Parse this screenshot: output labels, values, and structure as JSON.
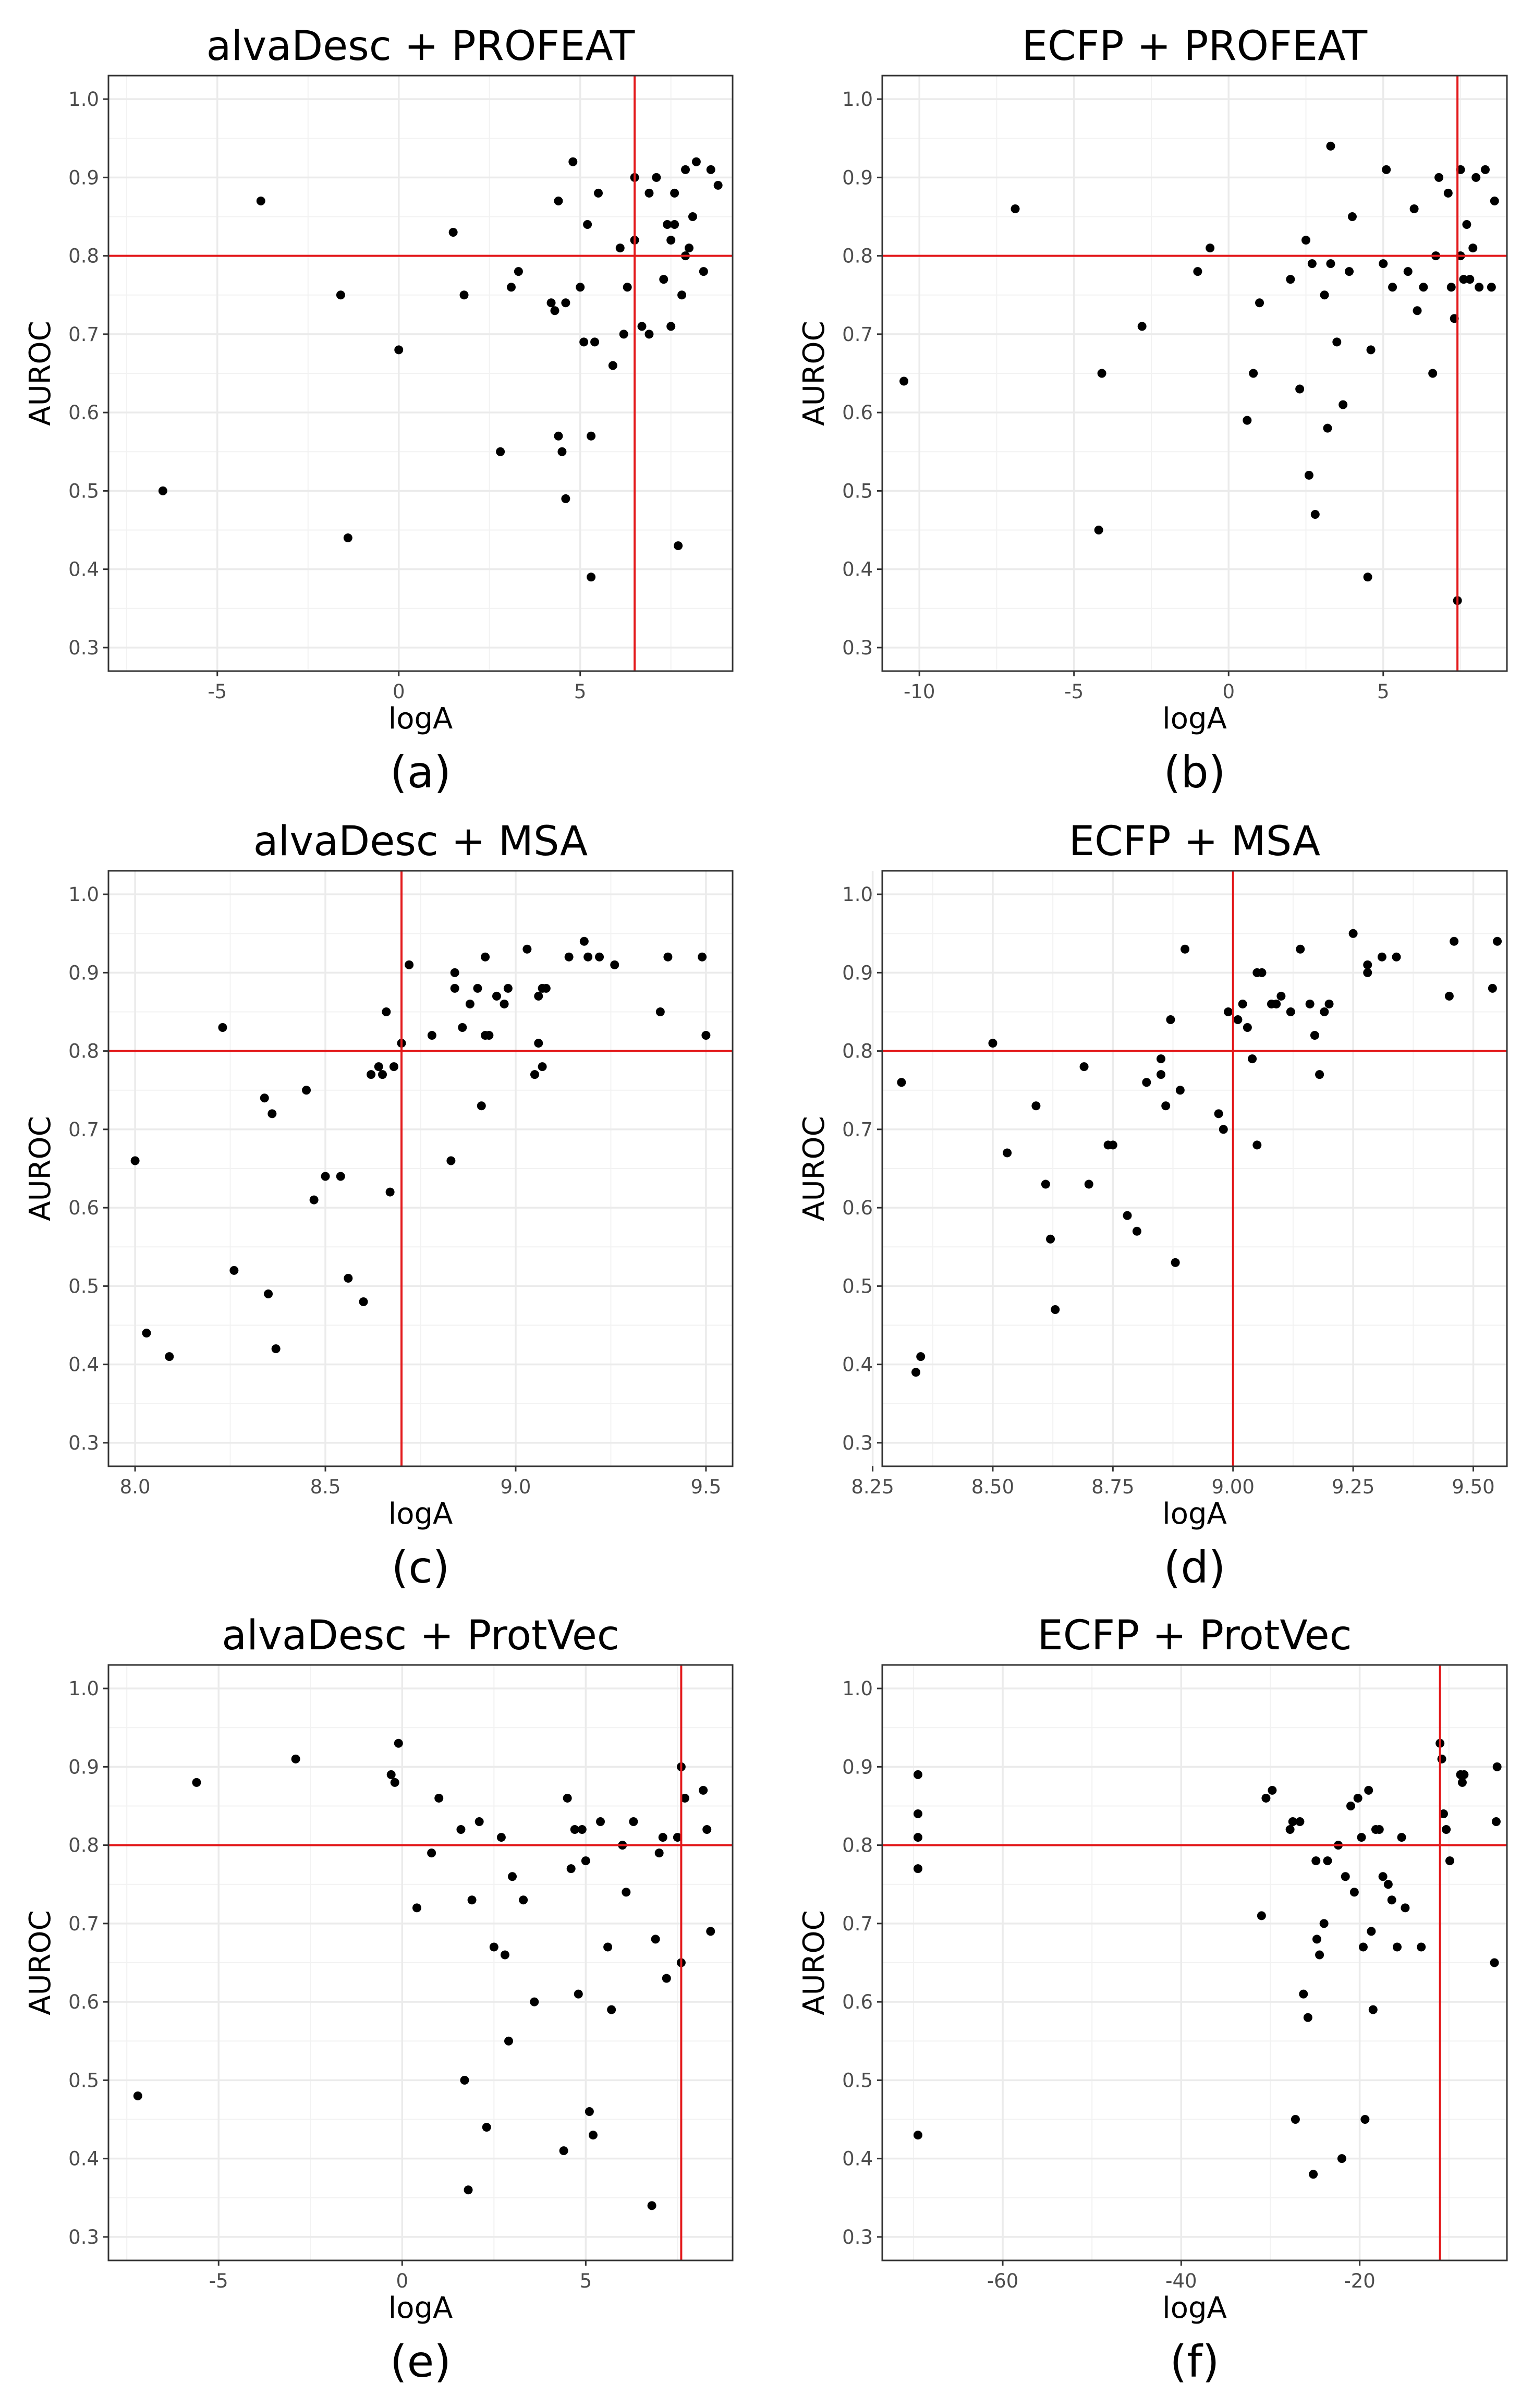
{
  "chart_data": [
    {
      "type": "scatter",
      "title": "alvaDesc + PROFEAT",
      "caption": "(a)",
      "xlabel": "logA",
      "ylabel": "AUROC",
      "xlim": [
        -8,
        9.2
      ],
      "ylim": [
        0.27,
        1.03
      ],
      "xticks": [
        -5,
        0,
        5
      ],
      "xtick_labels": [
        "-5",
        "0",
        "5"
      ],
      "yticks": [
        0.3,
        0.4,
        0.5,
        0.6,
        0.7,
        0.8,
        0.9,
        1.0
      ],
      "ytick_labels": [
        "0.3",
        "0.4",
        "0.5",
        "0.6",
        "0.7",
        "0.8",
        "0.9",
        "1.0"
      ],
      "vline": 6.5,
      "hline": 0.8,
      "line_color": "#e31a1c",
      "x": [
        -6.5,
        -3.8,
        -1.6,
        -1.4,
        0.0,
        1.5,
        1.8,
        2.8,
        3.1,
        3.3,
        4.2,
        4.3,
        4.4,
        4.4,
        4.5,
        4.6,
        4.6,
        4.8,
        5.0,
        5.1,
        5.2,
        5.3,
        5.3,
        5.4,
        5.5,
        5.9,
        6.1,
        6.2,
        6.3,
        6.5,
        6.5,
        6.7,
        6.9,
        6.9,
        7.1,
        7.3,
        7.4,
        7.5,
        7.5,
        7.6,
        7.6,
        7.7,
        7.8,
        7.9,
        7.9,
        8.0,
        8.1,
        8.2,
        8.4,
        8.6,
        8.8
      ],
      "y": [
        0.5,
        0.87,
        0.75,
        0.44,
        0.68,
        0.83,
        0.75,
        0.55,
        0.76,
        0.78,
        0.74,
        0.73,
        0.87,
        0.57,
        0.55,
        0.74,
        0.49,
        0.92,
        0.76,
        0.69,
        0.84,
        0.57,
        0.39,
        0.69,
        0.88,
        0.66,
        0.81,
        0.7,
        0.76,
        0.82,
        0.9,
        0.71,
        0.88,
        0.7,
        0.9,
        0.77,
        0.84,
        0.82,
        0.71,
        0.84,
        0.88,
        0.43,
        0.75,
        0.8,
        0.91,
        0.81,
        0.85,
        0.92,
        0.78,
        0.91,
        0.89
      ]
    },
    {
      "type": "scatter",
      "title": "ECFP + PROFEAT",
      "caption": "(b)",
      "xlabel": "logA",
      "ylabel": "AUROC",
      "xlim": [
        -11.2,
        9.0
      ],
      "ylim": [
        0.27,
        1.03
      ],
      "xticks": [
        -10,
        -5,
        0,
        5
      ],
      "xtick_labels": [
        "-10",
        "-5",
        "0",
        "5"
      ],
      "yticks": [
        0.3,
        0.4,
        0.5,
        0.6,
        0.7,
        0.8,
        0.9,
        1.0
      ],
      "ytick_labels": [
        "0.3",
        "0.4",
        "0.5",
        "0.6",
        "0.7",
        "0.8",
        "0.9",
        "1.0"
      ],
      "vline": 7.4,
      "hline": 0.8,
      "line_color": "#e31a1c",
      "x": [
        -10.5,
        -6.9,
        -4.2,
        -4.1,
        -2.8,
        -1.0,
        -0.6,
        0.6,
        0.8,
        1.0,
        2.0,
        2.3,
        2.5,
        2.6,
        2.7,
        2.8,
        3.1,
        3.2,
        3.3,
        3.3,
        3.5,
        3.7,
        3.9,
        4.0,
        4.5,
        4.6,
        5.0,
        5.1,
        5.3,
        5.8,
        6.0,
        6.1,
        6.3,
        6.6,
        6.7,
        6.8,
        7.1,
        7.2,
        7.3,
        7.4,
        7.5,
        7.5,
        7.6,
        7.7,
        7.8,
        7.9,
        8.0,
        8.1,
        8.3,
        8.5,
        8.6
      ],
      "y": [
        0.64,
        0.86,
        0.45,
        0.65,
        0.71,
        0.78,
        0.81,
        0.59,
        0.65,
        0.74,
        0.77,
        0.63,
        0.82,
        0.52,
        0.79,
        0.47,
        0.75,
        0.58,
        0.79,
        0.94,
        0.69,
        0.61,
        0.78,
        0.85,
        0.39,
        0.68,
        0.79,
        0.91,
        0.76,
        0.78,
        0.86,
        0.73,
        0.76,
        0.65,
        0.8,
        0.9,
        0.88,
        0.76,
        0.72,
        0.36,
        0.8,
        0.91,
        0.77,
        0.84,
        0.77,
        0.81,
        0.9,
        0.76,
        0.91,
        0.76,
        0.87
      ]
    },
    {
      "type": "scatter",
      "title": "alvaDesc + MSA",
      "caption": "(c)",
      "xlabel": "logA",
      "ylabel": "AUROC",
      "xlim": [
        7.93,
        9.57
      ],
      "ylim": [
        0.27,
        1.03
      ],
      "xticks": [
        8.0,
        8.5,
        9.0,
        9.5
      ],
      "xtick_labels": [
        "8.0",
        "8.5",
        "9.0",
        "9.5"
      ],
      "yticks": [
        0.3,
        0.4,
        0.5,
        0.6,
        0.7,
        0.8,
        0.9,
        1.0
      ],
      "ytick_labels": [
        "0.3",
        "0.4",
        "0.5",
        "0.6",
        "0.7",
        "0.8",
        "0.9",
        "1.0"
      ],
      "vline": 8.7,
      "hline": 0.8,
      "line_color": "#e31a1c",
      "x": [
        8.0,
        8.03,
        8.09,
        8.23,
        8.26,
        8.34,
        8.35,
        8.36,
        8.37,
        8.45,
        8.47,
        8.5,
        8.54,
        8.56,
        8.6,
        8.62,
        8.64,
        8.65,
        8.66,
        8.67,
        8.68,
        8.7,
        8.72,
        8.78,
        8.83,
        8.84,
        8.84,
        8.86,
        8.88,
        8.9,
        8.91,
        8.92,
        8.92,
        8.93,
        8.95,
        8.97,
        8.98,
        9.03,
        9.05,
        9.06,
        9.06,
        9.07,
        9.07,
        9.08,
        9.14,
        9.18,
        9.19,
        9.22,
        9.26,
        9.38,
        9.4,
        9.49,
        9.5
      ],
      "y": [
        0.66,
        0.44,
        0.41,
        0.83,
        0.52,
        0.74,
        0.49,
        0.72,
        0.42,
        0.75,
        0.61,
        0.64,
        0.64,
        0.51,
        0.48,
        0.77,
        0.78,
        0.77,
        0.85,
        0.62,
        0.78,
        0.81,
        0.91,
        0.82,
        0.66,
        0.88,
        0.9,
        0.83,
        0.86,
        0.88,
        0.73,
        0.92,
        0.82,
        0.82,
        0.87,
        0.86,
        0.88,
        0.93,
        0.77,
        0.87,
        0.81,
        0.78,
        0.88,
        0.88,
        0.92,
        0.94,
        0.92,
        0.92,
        0.91,
        0.85,
        0.92,
        0.92,
        0.82
      ]
    },
    {
      "type": "scatter",
      "title": "ECFP + MSA",
      "caption": "(d)",
      "xlabel": "logA",
      "ylabel": "AUROC",
      "xlim": [
        8.27,
        9.57
      ],
      "ylim": [
        0.27,
        1.03
      ],
      "xticks": [
        8.25,
        8.5,
        8.75,
        9.0,
        9.25,
        9.5
      ],
      "xtick_labels": [
        "8.25",
        "8.50",
        "8.75",
        "9.00",
        "9.25",
        "9.50"
      ],
      "yticks": [
        0.3,
        0.4,
        0.5,
        0.6,
        0.7,
        0.8,
        0.9,
        1.0
      ],
      "ytick_labels": [
        "0.3",
        "0.4",
        "0.5",
        "0.6",
        "0.7",
        "0.8",
        "0.9",
        "1.0"
      ],
      "vline": 9.0,
      "hline": 0.8,
      "line_color": "#e31a1c",
      "x": [
        8.31,
        8.34,
        8.35,
        8.5,
        8.53,
        8.59,
        8.61,
        8.62,
        8.63,
        8.69,
        8.7,
        8.74,
        8.75,
        8.78,
        8.8,
        8.82,
        8.85,
        8.85,
        8.86,
        8.87,
        8.88,
        8.89,
        8.9,
        8.97,
        8.98,
        8.99,
        9.01,
        9.02,
        9.03,
        9.04,
        9.05,
        9.05,
        9.06,
        9.08,
        9.09,
        9.1,
        9.12,
        9.14,
        9.16,
        9.17,
        9.18,
        9.19,
        9.2,
        9.25,
        9.28,
        9.28,
        9.31,
        9.34,
        9.45,
        9.46,
        9.54,
        9.55
      ],
      "y": [
        0.76,
        0.39,
        0.41,
        0.81,
        0.67,
        0.73,
        0.63,
        0.56,
        0.47,
        0.78,
        0.63,
        0.68,
        0.68,
        0.59,
        0.57,
        0.76,
        0.79,
        0.77,
        0.73,
        0.84,
        0.53,
        0.75,
        0.93,
        0.72,
        0.7,
        0.85,
        0.84,
        0.86,
        0.83,
        0.79,
        0.68,
        0.9,
        0.9,
        0.86,
        0.86,
        0.87,
        0.85,
        0.93,
        0.86,
        0.82,
        0.77,
        0.85,
        0.86,
        0.95,
        0.91,
        0.9,
        0.92,
        0.92,
        0.87,
        0.94,
        0.88,
        0.94
      ]
    },
    {
      "type": "scatter",
      "title": "alvaDesc + ProtVec",
      "caption": "(e)",
      "xlabel": "logA",
      "ylabel": "AUROC",
      "xlim": [
        -8.0,
        9.0
      ],
      "ylim": [
        0.27,
        1.03
      ],
      "xticks": [
        -5,
        0,
        5
      ],
      "xtick_labels": [
        "-5",
        "0",
        "5"
      ],
      "yticks": [
        0.3,
        0.4,
        0.5,
        0.6,
        0.7,
        0.8,
        0.9,
        1.0
      ],
      "ytick_labels": [
        "0.3",
        "0.4",
        "0.5",
        "0.6",
        "0.7",
        "0.8",
        "0.9",
        "1.0"
      ],
      "vline": 7.6,
      "hline": 0.8,
      "line_color": "#e31a1c",
      "x": [
        -7.2,
        -5.6,
        -2.9,
        -0.3,
        -0.2,
        -0.1,
        0.4,
        0.8,
        1.0,
        1.6,
        1.7,
        1.8,
        1.9,
        2.1,
        2.3,
        2.5,
        2.7,
        2.8,
        2.9,
        3.0,
        3.3,
        3.6,
        4.4,
        4.5,
        4.6,
        4.7,
        4.8,
        4.9,
        5.0,
        5.1,
        5.2,
        5.4,
        5.6,
        5.7,
        6.0,
        6.1,
        6.3,
        6.8,
        6.9,
        7.0,
        7.1,
        7.2,
        7.5,
        7.6,
        7.6,
        7.7,
        8.2,
        8.3,
        8.4
      ],
      "y": [
        0.48,
        0.88,
        0.91,
        0.89,
        0.88,
        0.93,
        0.72,
        0.79,
        0.86,
        0.82,
        0.5,
        0.36,
        0.73,
        0.83,
        0.44,
        0.67,
        0.81,
        0.66,
        0.55,
        0.76,
        0.73,
        0.6,
        0.41,
        0.86,
        0.77,
        0.82,
        0.61,
        0.82,
        0.78,
        0.46,
        0.43,
        0.83,
        0.67,
        0.59,
        0.8,
        0.74,
        0.83,
        0.34,
        0.68,
        0.79,
        0.81,
        0.63,
        0.81,
        0.65,
        0.9,
        0.86,
        0.87,
        0.82,
        0.69
      ]
    },
    {
      "type": "scatter",
      "title": "ECFP + ProtVec",
      "caption": "(f)",
      "xlabel": "logA",
      "ylabel": "AUROC",
      "xlim": [
        -73.5,
        -3.5
      ],
      "ylim": [
        0.27,
        1.03
      ],
      "xticks": [
        -60,
        -40,
        -20
      ],
      "xtick_labels": [
        "-60",
        "-40",
        "-20"
      ],
      "yticks": [
        0.3,
        0.4,
        0.5,
        0.6,
        0.7,
        0.8,
        0.9,
        1.0
      ],
      "ytick_labels": [
        "0.3",
        "0.4",
        "0.5",
        "0.6",
        "0.7",
        "0.8",
        "0.9",
        "1.0"
      ],
      "vline": -11,
      "hline": 0.8,
      "line_color": "#e31a1c",
      "x": [
        -69.5,
        -69.5,
        -69.5,
        -69.5,
        -69.5,
        -31.0,
        -30.5,
        -29.8,
        -27.8,
        -27.5,
        -27.2,
        -26.7,
        -26.3,
        -25.8,
        -25.2,
        -24.9,
        -24.8,
        -24.5,
        -24.0,
        -23.6,
        -22.4,
        -22.0,
        -21.6,
        -21.0,
        -20.6,
        -20.2,
        -19.8,
        -19.6,
        -19.4,
        -19.0,
        -18.7,
        -18.5,
        -18.2,
        -17.8,
        -17.4,
        -16.8,
        -16.4,
        -15.8,
        -15.3,
        -14.9,
        -13.1,
        -11.0,
        -10.8,
        -10.6,
        -10.3,
        -9.9,
        -8.7,
        -8.5,
        -8.3,
        -4.9,
        -4.7,
        -4.6
      ],
      "y": [
        0.89,
        0.84,
        0.81,
        0.77,
        0.43,
        0.71,
        0.86,
        0.87,
        0.82,
        0.83,
        0.45,
        0.83,
        0.61,
        0.58,
        0.38,
        0.78,
        0.68,
        0.66,
        0.7,
        0.78,
        0.8,
        0.4,
        0.76,
        0.85,
        0.74,
        0.86,
        0.81,
        0.67,
        0.45,
        0.87,
        0.69,
        0.59,
        0.82,
        0.82,
        0.76,
        0.75,
        0.73,
        0.67,
        0.81,
        0.72,
        0.67,
        0.93,
        0.91,
        0.84,
        0.82,
        0.78,
        0.89,
        0.88,
        0.89,
        0.65,
        0.83,
        0.9
      ]
    }
  ]
}
